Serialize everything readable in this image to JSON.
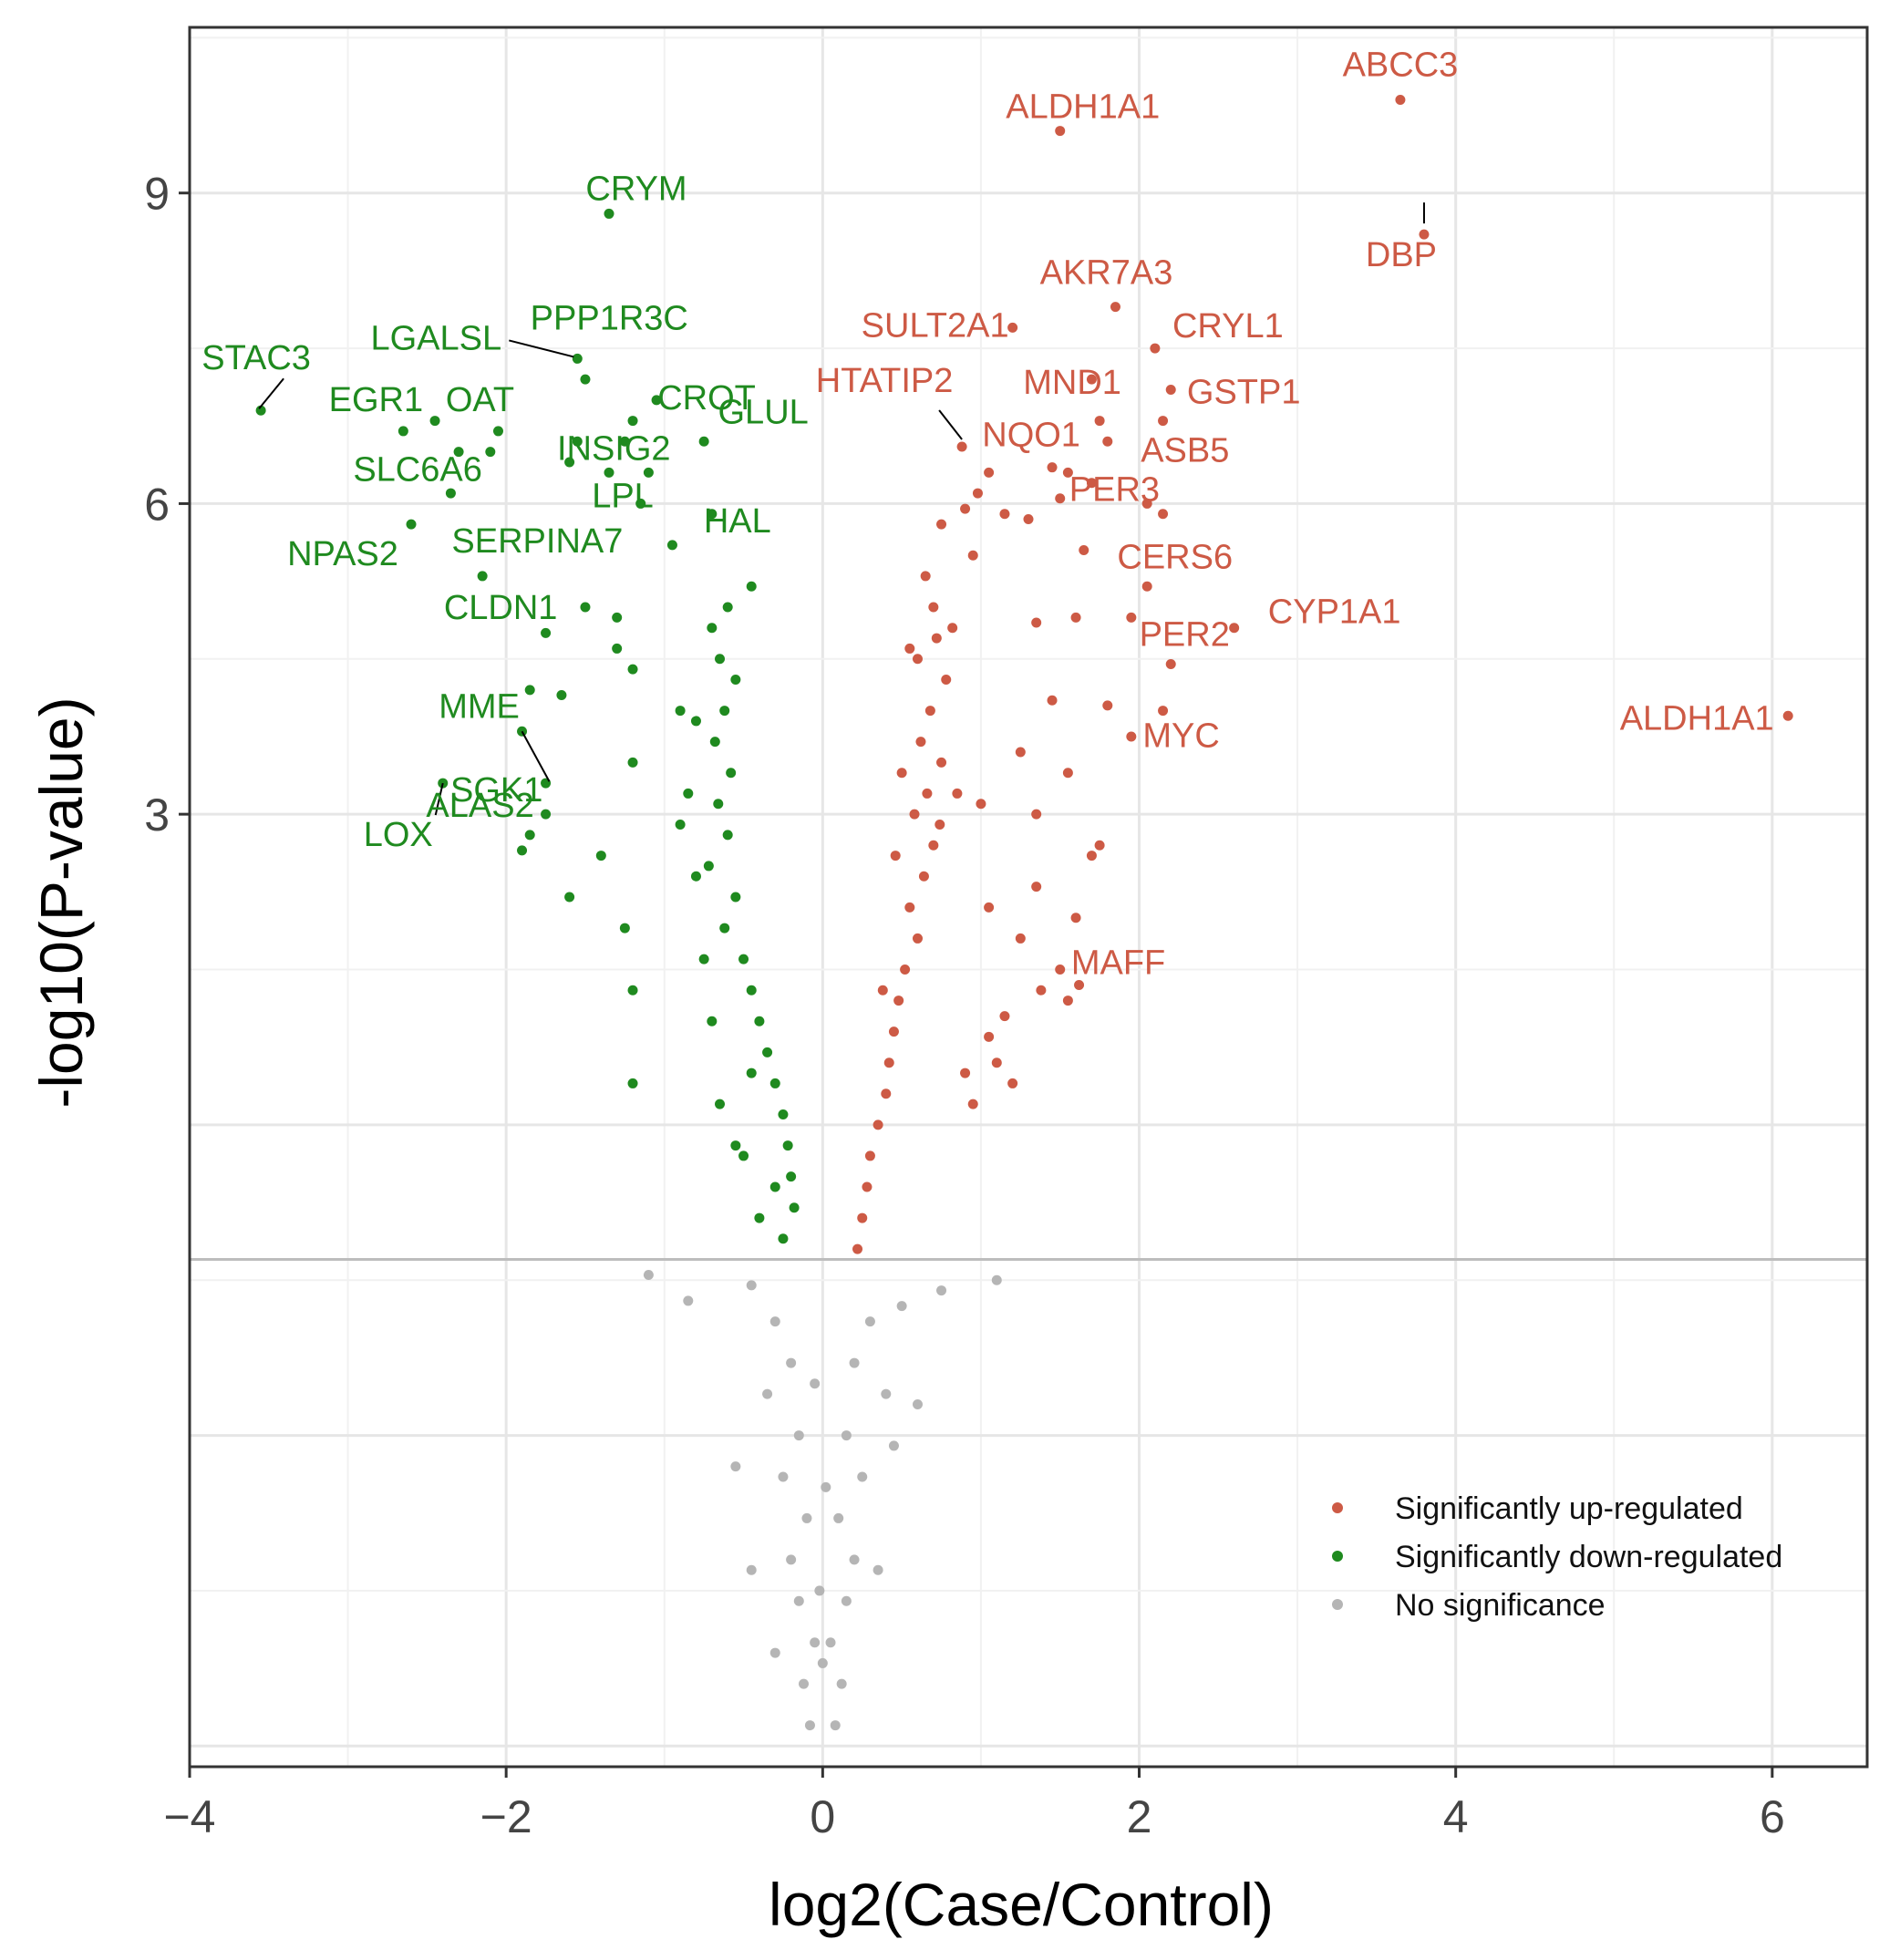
{
  "chart_data": {
    "type": "scatter",
    "title": "",
    "xlabel": "log2(Case/Control)",
    "ylabel": "-log10(P-value)",
    "xlim": [
      -4,
      6.6
    ],
    "ylim": [
      -6.2,
      10.6
    ],
    "x_ticks": [
      -4,
      -2,
      0,
      2,
      4,
      6
    ],
    "y_ticks": [
      3,
      6,
      9
    ],
    "x_tick_labels": [
      "−4",
      "−2",
      "0",
      "2",
      "4",
      "6"
    ],
    "y_tick_labels": [
      "3",
      "6",
      "9"
    ],
    "significance_threshold": -1.3,
    "colors": {
      "up": "#cd5a45",
      "down": "#1f8a1f",
      "none": "#b5b5b5",
      "threshold": "#bdbdbd"
    },
    "legend": {
      "position": "bottom-right",
      "entries": [
        {
          "name": "Significantly up-regulated",
          "group": "up"
        },
        {
          "name": "Significantly down-regulated",
          "group": "down"
        },
        {
          "name": "No significance",
          "group": "none"
        }
      ]
    },
    "series": [
      {
        "name": "Significantly up-regulated",
        "group": "up",
        "points": [
          [
            3.65,
            9.9
          ],
          [
            1.5,
            9.6
          ],
          [
            3.8,
            8.6
          ],
          [
            1.85,
            7.9
          ],
          [
            1.2,
            7.7
          ],
          [
            2.1,
            7.5
          ],
          [
            1.7,
            7.2
          ],
          [
            2.2,
            7.1
          ],
          [
            2.15,
            6.8
          ],
          [
            1.75,
            6.8
          ],
          [
            1.8,
            6.6
          ],
          [
            0.88,
            6.55
          ],
          [
            1.05,
            6.3
          ],
          [
            1.55,
            6.3
          ],
          [
            1.45,
            6.35
          ],
          [
            0.98,
            6.1
          ],
          [
            1.5,
            6.05
          ],
          [
            1.7,
            6.2
          ],
          [
            2.05,
            6.0
          ],
          [
            2.15,
            5.9
          ],
          [
            0.9,
            5.95
          ],
          [
            1.15,
            5.9
          ],
          [
            1.3,
            5.85
          ],
          [
            0.75,
            5.8
          ],
          [
            1.65,
            5.55
          ],
          [
            0.95,
            5.5
          ],
          [
            2.05,
            5.2
          ],
          [
            1.35,
            4.85
          ],
          [
            1.6,
            4.9
          ],
          [
            1.95,
            4.9
          ],
          [
            2.6,
            4.8
          ],
          [
            2.2,
            4.45
          ],
          [
            1.45,
            4.1
          ],
          [
            1.8,
            4.05
          ],
          [
            2.15,
            4.0
          ],
          [
            1.25,
            3.6
          ],
          [
            1.55,
            3.4
          ],
          [
            1.95,
            3.75
          ],
          [
            1.35,
            3.0
          ],
          [
            1.0,
            3.1
          ],
          [
            1.7,
            2.6
          ],
          [
            1.75,
            2.7
          ],
          [
            1.35,
            2.3
          ],
          [
            1.6,
            2.0
          ],
          [
            1.05,
            2.1
          ],
          [
            1.25,
            1.8
          ],
          [
            1.5,
            1.5
          ],
          [
            1.62,
            1.35
          ],
          [
            1.38,
            1.3
          ],
          [
            1.55,
            1.2
          ],
          [
            1.1,
            0.6
          ],
          [
            0.9,
            0.5
          ],
          [
            1.2,
            0.4
          ],
          [
            0.95,
            0.2
          ],
          [
            1.05,
            0.85
          ],
          [
            1.15,
            1.05
          ],
          [
            6.1,
            3.95
          ],
          [
            0.65,
            5.3
          ],
          [
            0.7,
            5.0
          ],
          [
            0.72,
            4.7
          ],
          [
            0.6,
            4.5
          ],
          [
            0.78,
            4.3
          ],
          [
            0.68,
            4.0
          ],
          [
            0.62,
            3.7
          ],
          [
            0.75,
            3.5
          ],
          [
            0.66,
            3.2
          ],
          [
            0.58,
            3.0
          ],
          [
            0.7,
            2.7
          ],
          [
            0.64,
            2.4
          ],
          [
            0.55,
            2.1
          ],
          [
            0.6,
            1.8
          ],
          [
            0.52,
            1.5
          ],
          [
            0.48,
            1.2
          ],
          [
            0.45,
            0.9
          ],
          [
            0.42,
            0.6
          ],
          [
            0.4,
            0.3
          ],
          [
            0.35,
            0.0
          ],
          [
            0.3,
            -0.3
          ],
          [
            0.28,
            -0.6
          ],
          [
            0.25,
            -0.9
          ],
          [
            0.22,
            -1.2
          ],
          [
            0.5,
            3.4
          ],
          [
            0.85,
            3.2
          ],
          [
            0.82,
            4.8
          ],
          [
            0.55,
            4.6
          ],
          [
            0.74,
            2.9
          ],
          [
            0.46,
            2.6
          ],
          [
            0.38,
            1.3
          ]
        ]
      },
      {
        "name": "Significantly down-regulated",
        "group": "down",
        "points": [
          [
            -1.35,
            8.8
          ],
          [
            -3.55,
            6.9
          ],
          [
            -1.55,
            7.4
          ],
          [
            -1.5,
            7.2
          ],
          [
            -1.2,
            6.8
          ],
          [
            -1.05,
            7.0
          ],
          [
            -1.55,
            6.6
          ],
          [
            -2.05,
            6.7
          ],
          [
            -2.45,
            6.8
          ],
          [
            -2.65,
            6.7
          ],
          [
            -1.25,
            6.6
          ],
          [
            -2.3,
            6.5
          ],
          [
            -2.1,
            6.5
          ],
          [
            -1.6,
            6.4
          ],
          [
            -1.35,
            6.3
          ],
          [
            -1.1,
            6.3
          ],
          [
            -0.75,
            6.6
          ],
          [
            -1.15,
            6.0
          ],
          [
            -0.7,
            5.9
          ],
          [
            -2.35,
            6.1
          ],
          [
            -2.6,
            5.8
          ],
          [
            -0.95,
            5.6
          ],
          [
            -2.15,
            5.3
          ],
          [
            -1.5,
            5.0
          ],
          [
            -1.3,
            4.9
          ],
          [
            -1.75,
            4.75
          ],
          [
            -0.45,
            5.2
          ],
          [
            -1.3,
            4.6
          ],
          [
            -1.2,
            4.4
          ],
          [
            -1.85,
            4.2
          ],
          [
            -1.65,
            4.15
          ],
          [
            -0.9,
            4.0
          ],
          [
            -1.9,
            3.8
          ],
          [
            -1.75,
            3.3
          ],
          [
            -1.2,
            3.5
          ],
          [
            -2.4,
            3.3
          ],
          [
            -1.75,
            3.0
          ],
          [
            -1.85,
            2.8
          ],
          [
            -1.9,
            2.65
          ],
          [
            -1.4,
            2.6
          ],
          [
            -1.6,
            2.2
          ],
          [
            -1.25,
            1.9
          ],
          [
            -1.2,
            1.3
          ],
          [
            -1.2,
            0.4
          ],
          [
            -0.6,
            5.0
          ],
          [
            -0.7,
            4.8
          ],
          [
            -0.65,
            4.5
          ],
          [
            -0.55,
            4.3
          ],
          [
            -0.62,
            4.0
          ],
          [
            -0.68,
            3.7
          ],
          [
            -0.58,
            3.4
          ],
          [
            -0.66,
            3.1
          ],
          [
            -0.6,
            2.8
          ],
          [
            -0.72,
            2.5
          ],
          [
            -0.55,
            2.2
          ],
          [
            -0.62,
            1.9
          ],
          [
            -0.5,
            1.6
          ],
          [
            -0.45,
            1.3
          ],
          [
            -0.4,
            1.0
          ],
          [
            -0.35,
            0.7
          ],
          [
            -0.3,
            0.4
          ],
          [
            -0.25,
            0.1
          ],
          [
            -0.22,
            -0.2
          ],
          [
            -0.2,
            -0.5
          ],
          [
            -0.18,
            -0.8
          ],
          [
            -0.25,
            -1.1
          ],
          [
            -0.4,
            -0.9
          ],
          [
            -0.5,
            -0.3
          ],
          [
            -0.3,
            -0.6
          ],
          [
            -0.45,
            0.5
          ],
          [
            -0.8,
            3.9
          ],
          [
            -0.85,
            3.2
          ],
          [
            -0.9,
            2.9
          ],
          [
            -0.8,
            2.4
          ],
          [
            -0.75,
            1.6
          ],
          [
            -0.7,
            1.0
          ],
          [
            -0.65,
            0.2
          ],
          [
            -0.55,
            -0.2
          ]
        ]
      },
      {
        "name": "No significance",
        "group": "none",
        "points": [
          [
            -1.1,
            -1.45
          ],
          [
            -0.85,
            -1.7
          ],
          [
            -0.45,
            -1.55
          ],
          [
            -0.3,
            -1.9
          ],
          [
            -0.2,
            -2.3
          ],
          [
            -0.35,
            -2.6
          ],
          [
            -0.15,
            -3.0
          ],
          [
            -0.25,
            -3.4
          ],
          [
            -0.1,
            -3.8
          ],
          [
            -0.2,
            -4.2
          ],
          [
            -0.15,
            -4.6
          ],
          [
            -0.05,
            -5.0
          ],
          [
            -0.12,
            -5.4
          ],
          [
            -0.08,
            -5.8
          ],
          [
            -0.55,
            -3.3
          ],
          [
            -0.45,
            -4.3
          ],
          [
            -0.3,
            -5.1
          ],
          [
            1.1,
            -1.5
          ],
          [
            0.75,
            -1.6
          ],
          [
            0.5,
            -1.75
          ],
          [
            0.3,
            -1.9
          ],
          [
            0.2,
            -2.3
          ],
          [
            0.4,
            -2.6
          ],
          [
            0.15,
            -3.0
          ],
          [
            0.25,
            -3.4
          ],
          [
            0.1,
            -3.8
          ],
          [
            0.2,
            -4.2
          ],
          [
            0.15,
            -4.6
          ],
          [
            0.05,
            -5.0
          ],
          [
            0.12,
            -5.4
          ],
          [
            0.08,
            -5.8
          ],
          [
            0.6,
            -2.7
          ],
          [
            0.35,
            -4.3
          ],
          [
            0.45,
            -3.1
          ],
          [
            -0.05,
            -2.5
          ],
          [
            0.02,
            -3.5
          ],
          [
            -0.02,
            -4.5
          ],
          [
            0.0,
            -5.2
          ]
        ]
      }
    ],
    "annotations": [
      {
        "text": "ABCC3",
        "group": "up",
        "x": 3.65,
        "y": 9.9
      },
      {
        "text": "ALDH1A1",
        "group": "up",
        "x": 1.5,
        "y": 9.6
      },
      {
        "text": "DBP",
        "group": "up",
        "x": 3.8,
        "y": 8.6
      },
      {
        "text": "AKR7A3",
        "group": "up",
        "x": 1.85,
        "y": 7.9
      },
      {
        "text": "SULT2A1",
        "group": "up",
        "x": 1.2,
        "y": 7.7
      },
      {
        "text": "MND1",
        "group": "up",
        "x": 1.75,
        "y": 7.5
      },
      {
        "text": "CRYL1",
        "group": "up",
        "x": 2.1,
        "y": 7.5
      },
      {
        "text": "HTATIP2",
        "group": "up",
        "x": 0.88,
        "y": 6.55
      },
      {
        "text": "GSTP1",
        "group": "up",
        "x": 2.2,
        "y": 7.1
      },
      {
        "text": "NQO1",
        "group": "up",
        "x": 1.75,
        "y": 6.8
      },
      {
        "text": "ASB5",
        "group": "up",
        "x": 1.8,
        "y": 6.6
      },
      {
        "text": "PER3",
        "group": "up",
        "x": 1.7,
        "y": 6.2
      },
      {
        "text": "CERS6",
        "group": "up",
        "x": 1.65,
        "y": 5.55
      },
      {
        "text": "CYP1A1",
        "group": "up",
        "x": 2.6,
        "y": 4.8
      },
      {
        "text": "PER2",
        "group": "up",
        "x": 2.2,
        "y": 4.45
      },
      {
        "text": "MYC",
        "group": "up",
        "x": 2.15,
        "y": 4.0
      },
      {
        "text": "ALDH1A1",
        "group": "up",
        "x": 6.1,
        "y": 3.95
      },
      {
        "text": "MAFF",
        "group": "up",
        "x": 1.62,
        "y": 1.35
      },
      {
        "text": "CRYM",
        "group": "down",
        "x": -1.35,
        "y": 8.8
      },
      {
        "text": "PPP1R3C",
        "group": "down",
        "x": -1.55,
        "y": 7.4
      },
      {
        "text": "STAC3",
        "group": "down",
        "x": -3.55,
        "y": 6.9
      },
      {
        "text": "LGALSL",
        "group": "down",
        "x": -1.55,
        "y": 7.4
      },
      {
        "text": "CROT",
        "group": "down",
        "x": -1.05,
        "y": 7.0
      },
      {
        "text": "EGR1",
        "group": "down",
        "x": -2.65,
        "y": 6.7
      },
      {
        "text": "OAT",
        "group": "down",
        "x": -2.05,
        "y": 6.7
      },
      {
        "text": "INSIG2",
        "group": "down",
        "x": -1.55,
        "y": 6.6
      },
      {
        "text": "GLUL",
        "group": "down",
        "x": -0.75,
        "y": 6.6
      },
      {
        "text": "SLC6A6",
        "group": "down",
        "x": -2.3,
        "y": 6.5
      },
      {
        "text": "HAL",
        "group": "down",
        "x": -0.7,
        "y": 5.9
      },
      {
        "text": "LPL",
        "group": "down",
        "x": -1.35,
        "y": 6.3
      },
      {
        "text": "NPAS2",
        "group": "down",
        "x": -2.6,
        "y": 5.8
      },
      {
        "text": "SERPINA7",
        "group": "down",
        "x": -2.35,
        "y": 6.1
      },
      {
        "text": "CLDN1",
        "group": "down",
        "x": -2.15,
        "y": 5.3
      },
      {
        "text": "MME",
        "group": "down",
        "x": -1.9,
        "y": 3.8
      },
      {
        "text": "ALAS2",
        "group": "down",
        "x": -1.75,
        "y": 3.3
      },
      {
        "text": "SGK1",
        "group": "down",
        "x": -2.4,
        "y": 3.3
      },
      {
        "text": "LOX",
        "group": "down",
        "x": -2.4,
        "y": 3.3
      }
    ]
  }
}
